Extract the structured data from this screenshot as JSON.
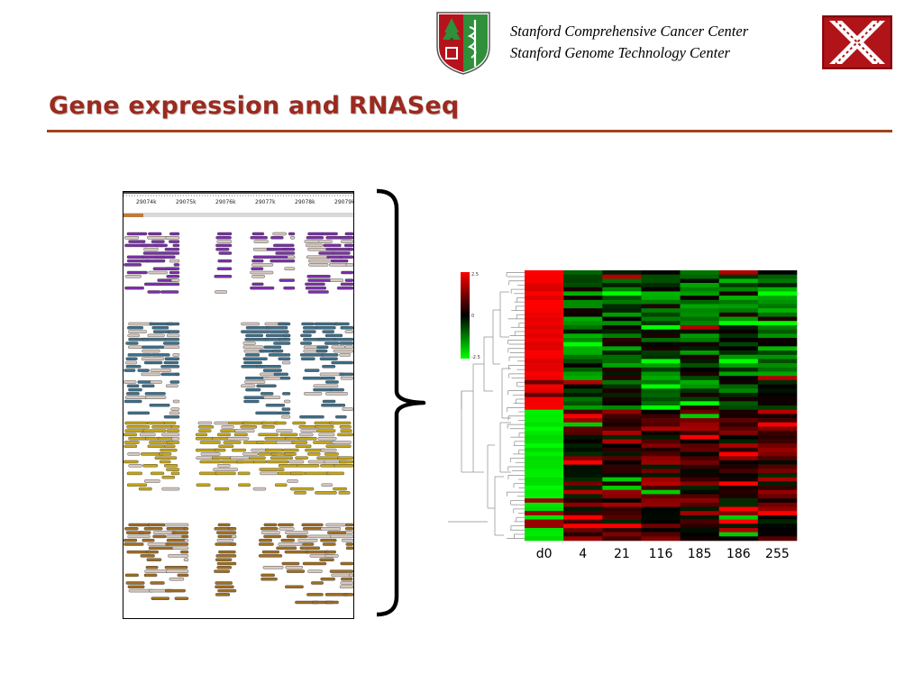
{
  "header": {
    "institution_line1": "Stanford Comprehensive Cancer Center",
    "institution_line2": "Stanford Genome Technology Center"
  },
  "slide": {
    "title": "Gene expression and RNASeq"
  },
  "genome_browser": {
    "ruler_ticks": [
      "29074k",
      "29075k",
      "29076k",
      "29077k",
      "29078k",
      "29079k"
    ],
    "track_colors": [
      "#7b2fa8",
      "#3d6f8a",
      "#c7a616",
      "#a06d20"
    ]
  },
  "heatmap": {
    "columns": [
      "d0",
      "4",
      "21",
      "116",
      "185",
      "186",
      "255"
    ],
    "colorkey_labels": [
      "2.5",
      "0",
      "-2.5"
    ],
    "colors": {
      "high": "#ff0000",
      "mid": "#000000",
      "low": "#00ff00"
    }
  },
  "colors": {
    "title": "#9b2a1f",
    "rule": "#a0431c",
    "shield_red": "#b5121b",
    "shield_green": "#2f8f3a"
  }
}
